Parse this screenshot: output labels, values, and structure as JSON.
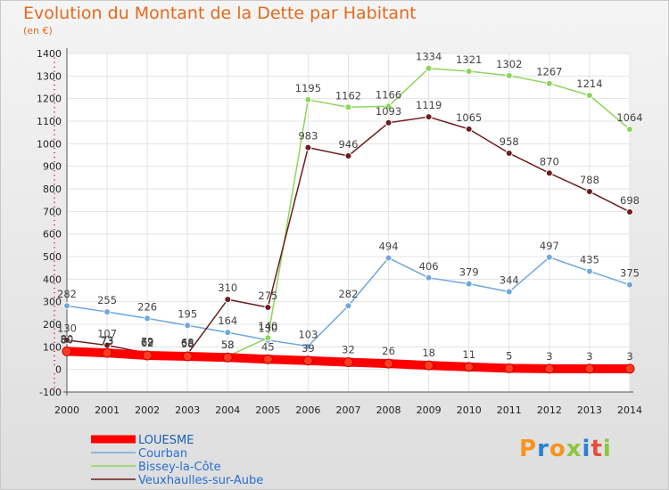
{
  "title": "Evolution du Montant de la Dette par Habitant",
  "unit": "(en €)",
  "logo": {
    "text": "Proxiti",
    "colors": [
      "#f7941e",
      "#2a7fd4",
      "#f7941e",
      "#8cc63f",
      "#2a7fd4",
      "#e74c3c",
      "#8cc63f"
    ]
  },
  "colors": {
    "title": "#e36a1d",
    "grid": "#e3e3e3"
  },
  "chart_data": {
    "type": "line",
    "x": [
      2000,
      2001,
      2002,
      2003,
      2004,
      2005,
      2006,
      2007,
      2008,
      2009,
      2010,
      2011,
      2012,
      2013,
      2014
    ],
    "ylim": [
      -100,
      1400
    ],
    "yticks": [
      -100,
      0,
      100,
      200,
      300,
      400,
      500,
      600,
      700,
      800,
      900,
      1000,
      1100,
      1200,
      1300,
      1400
    ],
    "series": [
      {
        "name": "Courban",
        "color": "#6fa8dc",
        "values": [
          282,
          255,
          226,
          195,
          164,
          130,
          103,
          282,
          494,
          406,
          379,
          344,
          497,
          435,
          375
        ]
      },
      {
        "name": "Bissey-la-Côte",
        "color": "#8cd65a",
        "values": [
          80,
          73,
          69,
          65,
          58,
          140,
          1195,
          1162,
          1166,
          1334,
          1321,
          1302,
          1267,
          1214,
          1064
        ]
      },
      {
        "name": "Veuxhaulles-sur-Aube",
        "color": "#6b1d1d",
        "values": [
          130,
          107,
          72,
          68,
          310,
          275,
          983,
          946,
          1093,
          1119,
          1065,
          958,
          870,
          788,
          698
        ]
      },
      {
        "name": "LOUESME",
        "color": "#ff0000",
        "values": [
          80,
          73,
          62,
          58,
          53,
          45,
          39,
          32,
          26,
          18,
          11,
          5,
          3,
          3,
          3
        ]
      }
    ],
    "legend": {
      "position": "bottom-left"
    },
    "grid": true
  }
}
